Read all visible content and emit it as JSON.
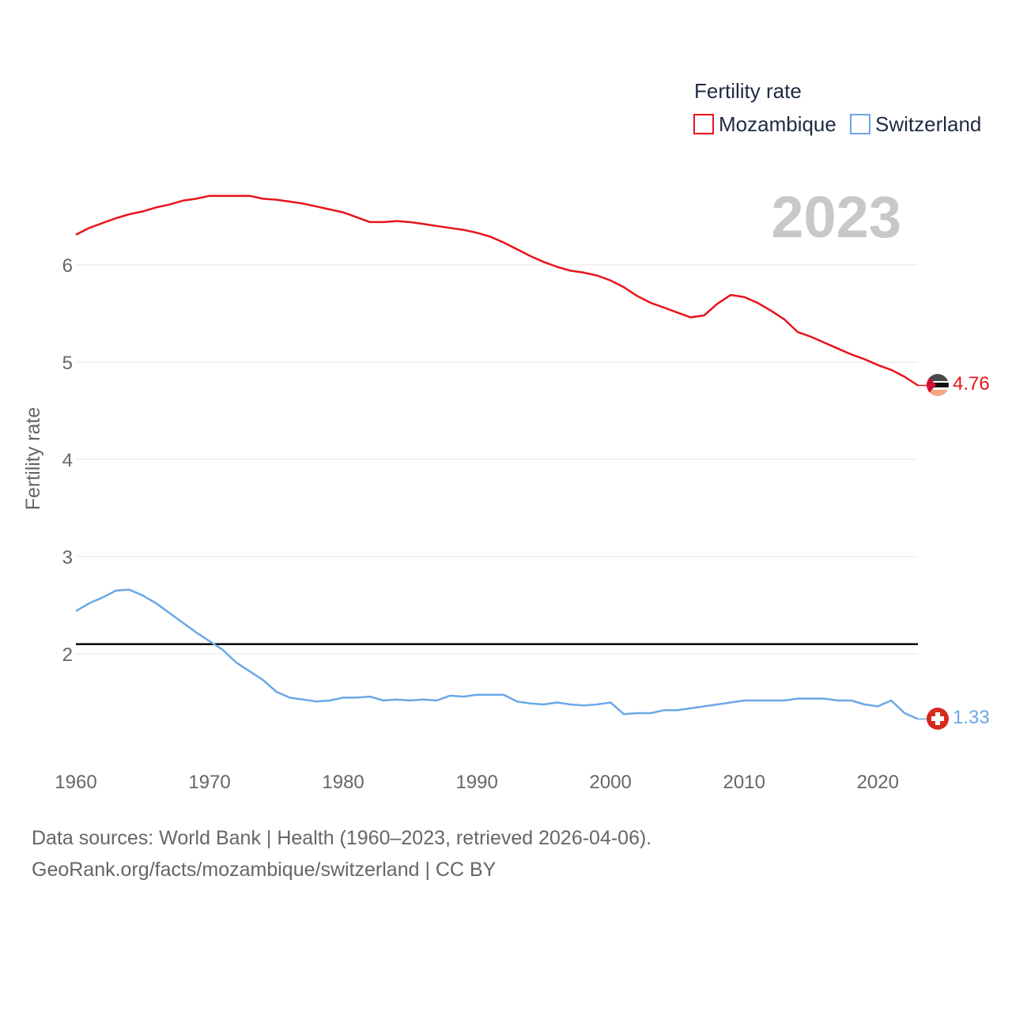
{
  "chart_data": {
    "type": "line",
    "title": "",
    "year_label": "2023",
    "ylabel": "Fertility rate",
    "xlabel": "",
    "legend_title": "Fertility rate",
    "legend_position": "top-right",
    "xlim": [
      1960,
      2023
    ],
    "ylim": [
      0.9,
      7.0
    ],
    "x_ticks": [
      1960,
      1970,
      1980,
      1990,
      2000,
      2010,
      2020
    ],
    "y_ticks": [
      2,
      3,
      4,
      5,
      6
    ],
    "reference_line": {
      "value": 2.1,
      "color": "#000000"
    },
    "x": [
      1960,
      1961,
      1962,
      1963,
      1964,
      1965,
      1966,
      1967,
      1968,
      1969,
      1970,
      1971,
      1972,
      1973,
      1974,
      1975,
      1976,
      1977,
      1978,
      1979,
      1980,
      1981,
      1982,
      1983,
      1984,
      1985,
      1986,
      1987,
      1988,
      1989,
      1990,
      1991,
      1992,
      1993,
      1994,
      1995,
      1996,
      1997,
      1998,
      1999,
      2000,
      2001,
      2002,
      2003,
      2004,
      2005,
      2006,
      2007,
      2008,
      2009,
      2010,
      2011,
      2012,
      2013,
      2014,
      2015,
      2016,
      2017,
      2018,
      2019,
      2020,
      2021,
      2022,
      2023
    ],
    "series": [
      {
        "name": "Mozambique",
        "color": "#e8141a",
        "end_label": "4.76",
        "values": [
          6.31,
          6.38,
          6.43,
          6.48,
          6.52,
          6.55,
          6.59,
          6.62,
          6.66,
          6.68,
          6.71,
          6.71,
          6.71,
          6.71,
          6.68,
          6.67,
          6.65,
          6.63,
          6.6,
          6.57,
          6.54,
          6.49,
          6.44,
          6.44,
          6.45,
          6.44,
          6.42,
          6.4,
          6.38,
          6.36,
          6.33,
          6.29,
          6.23,
          6.16,
          6.09,
          6.03,
          5.98,
          5.94,
          5.92,
          5.89,
          5.84,
          5.77,
          5.68,
          5.61,
          5.56,
          5.51,
          5.46,
          5.48,
          5.6,
          5.69,
          5.67,
          5.61,
          5.53,
          5.44,
          5.31,
          5.26,
          5.2,
          5.14,
          5.08,
          5.03,
          4.97,
          4.92,
          4.85,
          4.76
        ]
      },
      {
        "name": "Switzerland",
        "color": "#6aa8e6",
        "end_label": "1.33",
        "values": [
          2.44,
          2.52,
          2.58,
          2.65,
          2.66,
          2.6,
          2.52,
          2.42,
          2.32,
          2.22,
          2.13,
          2.04,
          1.91,
          1.82,
          1.73,
          1.61,
          1.55,
          1.53,
          1.51,
          1.52,
          1.55,
          1.55,
          1.56,
          1.52,
          1.53,
          1.52,
          1.53,
          1.52,
          1.57,
          1.56,
          1.58,
          1.58,
          1.58,
          1.51,
          1.49,
          1.48,
          1.5,
          1.48,
          1.47,
          1.48,
          1.5,
          1.38,
          1.39,
          1.39,
          1.42,
          1.42,
          1.44,
          1.46,
          1.48,
          1.5,
          1.52,
          1.52,
          1.52,
          1.52,
          1.54,
          1.54,
          1.54,
          1.52,
          1.52,
          1.48,
          1.46,
          1.52,
          1.39,
          1.33
        ]
      }
    ]
  },
  "footer": {
    "source_line": "Data sources: World Bank | Health (1960–2023, retrieved 2026-04-06).",
    "url_line": "GeoRank.org/facts/mozambique/switzerland | CC BY"
  }
}
